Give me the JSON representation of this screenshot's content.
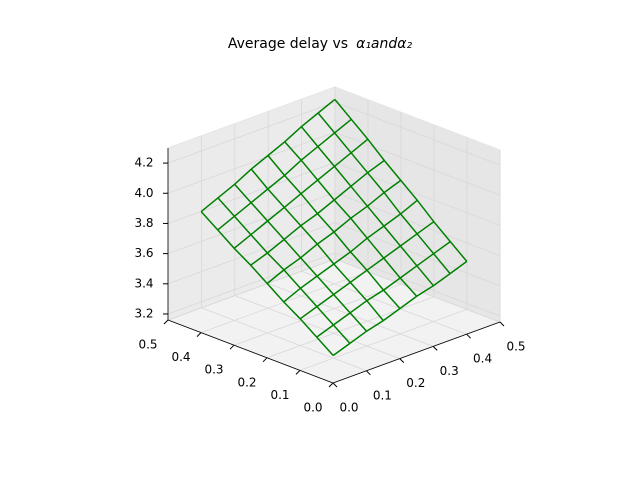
{
  "chart_data": {
    "type": "wireframe3d",
    "title": "Average delay vs",
    "title_math": "α₁andα₂",
    "color": "#008000",
    "x": [
      0.05,
      0.1,
      0.15,
      0.2,
      0.25,
      0.3,
      0.35,
      0.4,
      0.45
    ],
    "y": [
      0.05,
      0.1,
      0.15,
      0.2,
      0.25,
      0.3,
      0.35,
      0.4,
      0.45
    ],
    "z": [
      [
        3.26,
        3.3,
        3.34,
        3.37,
        3.41,
        3.45,
        3.48,
        3.52,
        3.56
      ],
      [
        3.34,
        3.38,
        3.42,
        3.46,
        3.49,
        3.53,
        3.57,
        3.61,
        3.65
      ],
      [
        3.42,
        3.46,
        3.5,
        3.54,
        3.58,
        3.62,
        3.66,
        3.7,
        3.74
      ],
      [
        3.49,
        3.54,
        3.58,
        3.62,
        3.66,
        3.71,
        3.75,
        3.79,
        3.84
      ],
      [
        3.57,
        3.62,
        3.66,
        3.71,
        3.75,
        3.8,
        3.84,
        3.89,
        3.93
      ],
      [
        3.65,
        3.69,
        3.74,
        3.79,
        3.83,
        3.88,
        3.93,
        3.98,
        4.02
      ],
      [
        3.72,
        3.77,
        3.82,
        3.87,
        3.92,
        3.97,
        4.02,
        4.07,
        4.12
      ],
      [
        3.8,
        3.85,
        3.9,
        3.95,
        4.0,
        4.06,
        4.11,
        4.16,
        4.21
      ],
      [
        3.88,
        3.93,
        3.98,
        4.04,
        4.09,
        4.14,
        4.2,
        4.25,
        4.3
      ]
    ],
    "xlim": [
      0,
      0.5
    ],
    "ylim": [
      0,
      0.5
    ],
    "zlim": [
      3.16,
      4.3
    ],
    "xticks": [
      {
        "value": 0,
        "label": "0.0"
      },
      0.1,
      0.2,
      0.3,
      0.4,
      0.5
    ],
    "yticks": [
      {
        "value": 0,
        "label": "0.0"
      },
      0.1,
      0.2,
      0.3,
      0.4,
      0.5
    ],
    "zticks": [
      3.2,
      3.4,
      3.6,
      3.8,
      {
        "value": 4,
        "label": "4.0"
      },
      4.2
    ],
    "grid": true
  }
}
